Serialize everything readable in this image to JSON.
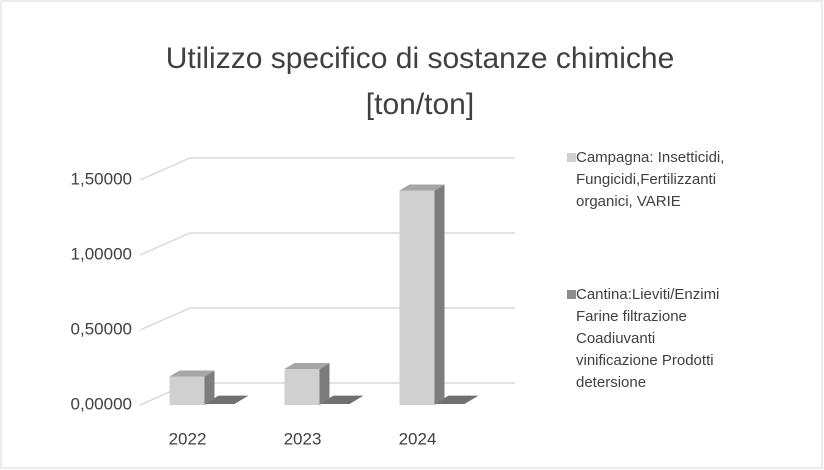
{
  "chart_data": {
    "type": "bar3d",
    "title": "Utilizzo specifico di sostanze chimiche [ton/ton]",
    "categories": [
      "2022",
      "2023",
      "2024"
    ],
    "series": [
      {
        "name": "Campagna: Insetticidi, Fungicidi,Fertilizzanti organici, VARIE",
        "color": "#d0d0d0",
        "values": [
          0.19,
          0.24,
          1.43
        ]
      },
      {
        "name": "Cantina:Lieviti/Enzimi Farine filtrazione Coadiuvanti vinificazione Prodotti detersione",
        "color": "#8c8c8c",
        "values": [
          0,
          0,
          0
        ]
      }
    ],
    "ylim": [
      0,
      1.5
    ],
    "yticks": [
      {
        "value": 0,
        "label": "0,00000"
      },
      {
        "value": 0.5,
        "label": "0,50000"
      },
      {
        "value": 1,
        "label": "1,00000"
      },
      {
        "value": 1.5,
        "label": "1,50000"
      }
    ],
    "grid": true,
    "legend": "right"
  }
}
